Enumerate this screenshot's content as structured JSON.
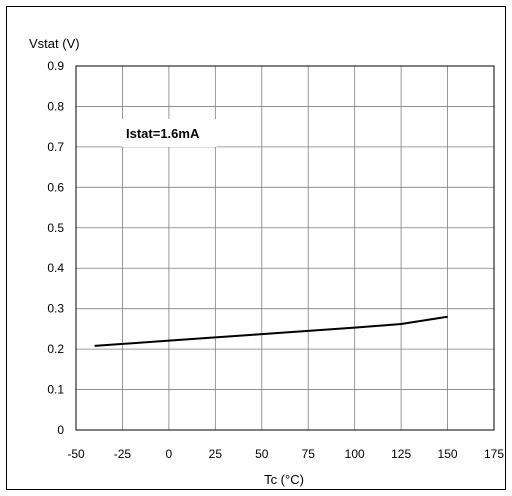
{
  "chart_data": {
    "type": "line",
    "xlabel": "Tc (°C)",
    "ylabel": "Vstat (V)",
    "xlim": [
      -50,
      175
    ],
    "ylim": [
      0,
      0.9
    ],
    "x_ticks": [
      -50,
      -25,
      0,
      25,
      50,
      75,
      100,
      125,
      150,
      175
    ],
    "y_ticks": [
      0,
      0.1,
      0.2,
      0.3,
      0.4,
      0.5,
      0.6,
      0.7,
      0.8,
      0.9
    ],
    "y_tick_labels": [
      "0",
      "0.1",
      "0.2",
      "0.3",
      "0.4",
      "0.5",
      "0.6",
      "0.7",
      "0.8",
      "0.9"
    ],
    "grid": true,
    "annotation": "Istat=1.6mA",
    "series": [
      {
        "x": [
          -40,
          0,
          25,
          50,
          75,
          100,
          125,
          150
        ],
        "y": [
          0.208,
          0.221,
          0.229,
          0.237,
          0.245,
          0.253,
          0.262,
          0.28
        ]
      }
    ],
    "line_color": "#000000",
    "grid_color": "#808080"
  }
}
